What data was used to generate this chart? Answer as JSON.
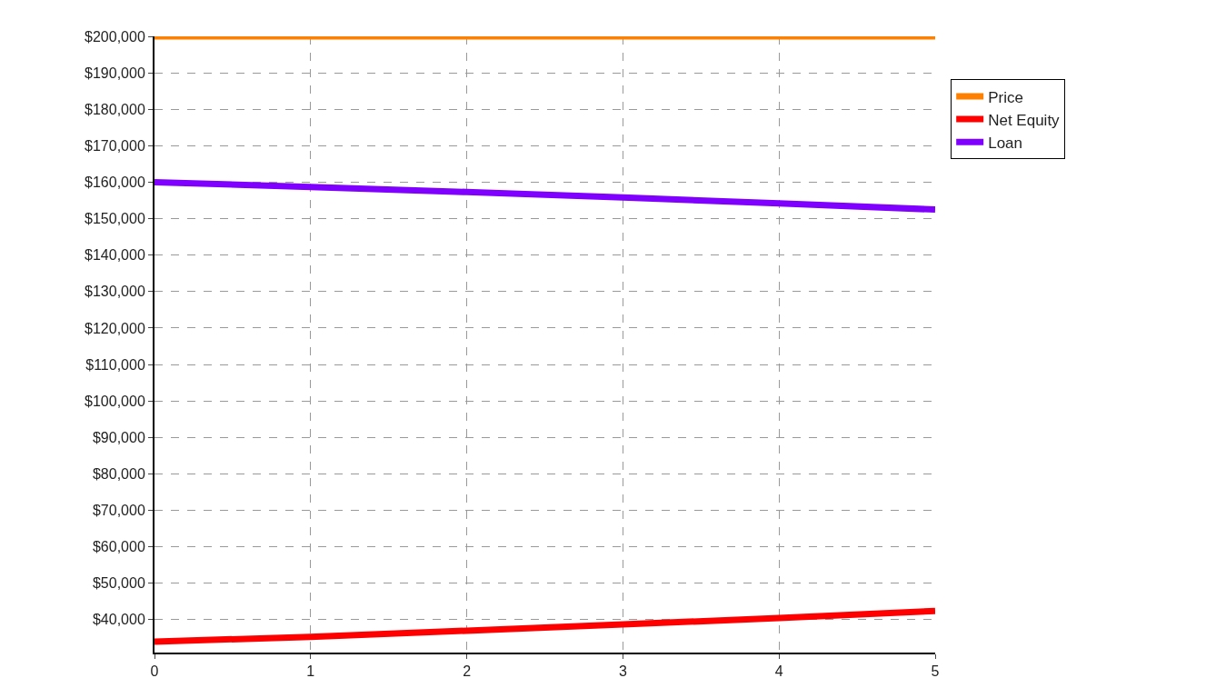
{
  "chart_data": {
    "type": "line",
    "x": [
      0,
      1,
      2,
      3,
      4,
      5
    ],
    "series": [
      {
        "name": "Price",
        "color": "#ff8000",
        "values": [
          200000,
          200000,
          200000,
          200000,
          200000,
          200000
        ]
      },
      {
        "name": "Net Equity",
        "color": "#ff0000",
        "values": [
          34000,
          35300,
          37000,
          38700,
          40500,
          42400
        ]
      },
      {
        "name": "Loan",
        "color": "#8000ff",
        "values": [
          160000,
          158700,
          157300,
          155800,
          154200,
          152500
        ]
      }
    ],
    "xlim": [
      0,
      5
    ],
    "xticks": [
      0,
      1,
      2,
      3,
      4,
      5
    ],
    "ylim": [
      31000,
      200000
    ],
    "yticks": [
      {
        "value": 40000,
        "label": "$40,000"
      },
      {
        "value": 50000,
        "label": "$50,000"
      },
      {
        "value": 60000,
        "label": "$60,000"
      },
      {
        "value": 70000,
        "label": "$70,000"
      },
      {
        "value": 80000,
        "label": "$80,000"
      },
      {
        "value": 90000,
        "label": "$90,000"
      },
      {
        "value": 100000,
        "label": "$100,000"
      },
      {
        "value": 110000,
        "label": "$110,000"
      },
      {
        "value": 120000,
        "label": "$120,000"
      },
      {
        "value": 130000,
        "label": "$130,000"
      },
      {
        "value": 140000,
        "label": "$140,000"
      },
      {
        "value": 150000,
        "label": "$150,000"
      },
      {
        "value": 160000,
        "label": "$160,000"
      },
      {
        "value": 170000,
        "label": "$170,000"
      },
      {
        "value": 180000,
        "label": "$180,000"
      },
      {
        "value": 190000,
        "label": "$190,000"
      },
      {
        "value": 200000,
        "label": "$200,000"
      }
    ],
    "grid": true,
    "legend": "top right",
    "marker": "none",
    "line_style": "solid"
  }
}
